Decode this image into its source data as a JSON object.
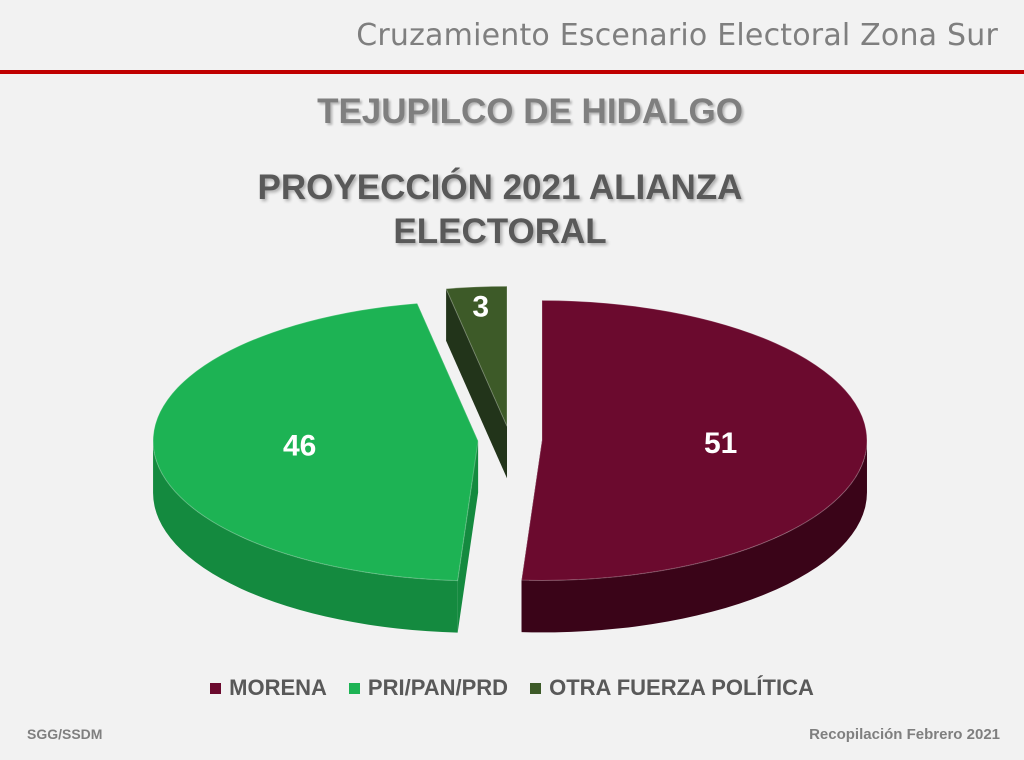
{
  "header": {
    "title": "Cruzamiento Escenario Electoral Zona Sur"
  },
  "subtitle": "TEJUPILCO DE HIDALGO",
  "chart_data": {
    "type": "pie",
    "title": "PROYECCIÓN 2021 ALIANZA ELECTORAL",
    "categories": [
      "MORENA",
      "PRI/PAN/PRD",
      "OTRA FUERZA POLÍTICA"
    ],
    "values": [
      51,
      46,
      3
    ],
    "data_labels": [
      "51",
      "46",
      "3"
    ],
    "colors": [
      "#6b0a2e",
      "#1db354",
      "#3d5a28"
    ],
    "side_colors": [
      "#3a0418",
      "#148a3f",
      "#22341a"
    ],
    "exploded": true,
    "three_d": true,
    "legend_position": "bottom"
  },
  "footer": {
    "source": "SGG/SSDM",
    "date": "Recopilación Febrero 2021"
  }
}
